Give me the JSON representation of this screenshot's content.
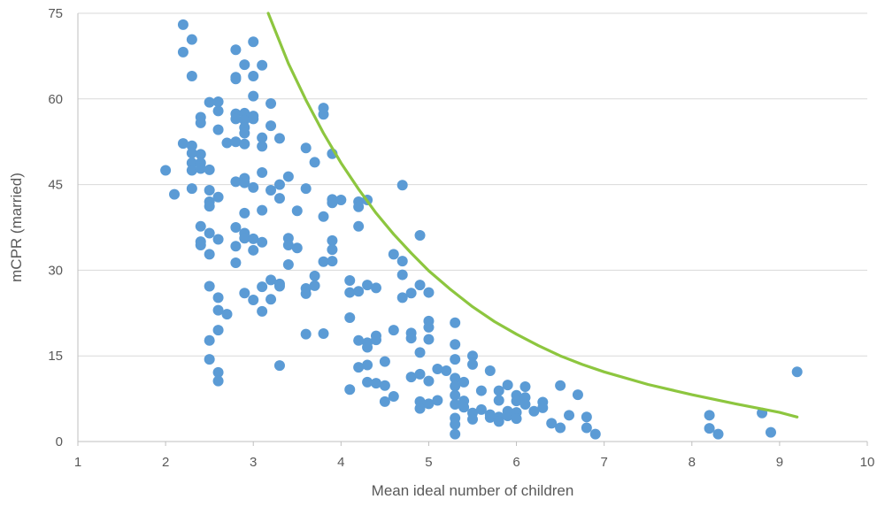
{
  "chart_data": {
    "type": "scatter",
    "title": "",
    "xlabel": "Mean ideal number of children",
    "ylabel": "mCPR (married)",
    "xlim": [
      1,
      10
    ],
    "ylim": [
      0,
      75
    ],
    "x_ticks": [
      "1",
      "2",
      "3",
      "4",
      "5",
      "6",
      "7",
      "8",
      "9",
      "10"
    ],
    "y_ticks": [
      "0",
      "15",
      "30",
      "45",
      "60",
      "75"
    ],
    "grid": "horizontal",
    "legend": "none",
    "colors": {
      "points": "#5B9BD5",
      "trend": "#8DC63F",
      "grid": "#D9D9D9",
      "axis": "#BFBFBF",
      "text": "#595959"
    },
    "trendline": {
      "type": "power",
      "x": [
        3.17,
        3.4,
        3.6,
        3.8,
        4.0,
        4.2,
        4.4,
        4.6,
        4.8,
        5.0,
        5.25,
        5.5,
        5.75,
        6.0,
        6.25,
        6.5,
        6.75,
        7.0,
        7.5,
        8.0,
        8.5,
        9.0,
        9.2
      ],
      "y": [
        75.0,
        66.2,
        59.8,
        54.0,
        48.8,
        44.2,
        40.0,
        36.3,
        33.0,
        29.9,
        26.6,
        23.6,
        21.0,
        18.8,
        16.8,
        15.0,
        13.5,
        12.2,
        10.0,
        8.2,
        6.6,
        5.1,
        4.3
      ]
    },
    "points": [
      [
        2.0,
        47.5
      ],
      [
        2.1,
        43.3
      ],
      [
        2.2,
        73.0
      ],
      [
        2.2,
        68.2
      ],
      [
        2.2,
        52.2
      ],
      [
        2.3,
        70.4
      ],
      [
        2.3,
        64.0
      ],
      [
        2.3,
        51.8
      ],
      [
        2.3,
        50.5
      ],
      [
        2.3,
        48.8
      ],
      [
        2.3,
        47.5
      ],
      [
        2.3,
        44.3
      ],
      [
        2.4,
        56.8
      ],
      [
        2.4,
        55.8
      ],
      [
        2.4,
        50.3
      ],
      [
        2.4,
        48.8
      ],
      [
        2.4,
        47.8
      ],
      [
        2.4,
        37.7
      ],
      [
        2.4,
        35.0
      ],
      [
        2.4,
        34.4
      ],
      [
        2.5,
        59.4
      ],
      [
        2.5,
        47.6
      ],
      [
        2.5,
        44.0
      ],
      [
        2.5,
        42.0
      ],
      [
        2.5,
        41.2
      ],
      [
        2.5,
        36.5
      ],
      [
        2.5,
        32.8
      ],
      [
        2.5,
        27.2
      ],
      [
        2.5,
        17.7
      ],
      [
        2.5,
        14.4
      ],
      [
        2.6,
        59.5
      ],
      [
        2.6,
        57.9
      ],
      [
        2.6,
        54.6
      ],
      [
        2.6,
        42.8
      ],
      [
        2.6,
        35.4
      ],
      [
        2.6,
        25.2
      ],
      [
        2.6,
        23.0
      ],
      [
        2.6,
        19.5
      ],
      [
        2.6,
        12.1
      ],
      [
        2.6,
        10.6
      ],
      [
        2.7,
        52.3
      ],
      [
        2.7,
        22.3
      ],
      [
        2.8,
        68.6
      ],
      [
        2.8,
        63.8
      ],
      [
        2.8,
        63.5
      ],
      [
        2.8,
        57.4
      ],
      [
        2.8,
        56.5
      ],
      [
        2.8,
        52.5
      ],
      [
        2.8,
        45.5
      ],
      [
        2.8,
        37.5
      ],
      [
        2.8,
        34.2
      ],
      [
        2.8,
        31.3
      ],
      [
        2.9,
        66.0
      ],
      [
        2.9,
        57.5
      ],
      [
        2.9,
        56.3
      ],
      [
        2.9,
        55.0
      ],
      [
        2.9,
        54.0
      ],
      [
        2.9,
        52.1
      ],
      [
        2.9,
        46.1
      ],
      [
        2.9,
        45.3
      ],
      [
        2.9,
        40.0
      ],
      [
        2.9,
        36.5
      ],
      [
        2.9,
        35.6
      ],
      [
        2.9,
        26.0
      ],
      [
        3.0,
        70.0
      ],
      [
        3.0,
        64.0
      ],
      [
        3.0,
        60.5
      ],
      [
        3.0,
        57.0
      ],
      [
        3.0,
        56.5
      ],
      [
        3.0,
        44.5
      ],
      [
        3.0,
        35.5
      ],
      [
        3.0,
        33.5
      ],
      [
        3.0,
        24.8
      ],
      [
        3.1,
        65.9
      ],
      [
        3.1,
        53.2
      ],
      [
        3.1,
        51.7
      ],
      [
        3.1,
        47.1
      ],
      [
        3.1,
        40.5
      ],
      [
        3.1,
        34.9
      ],
      [
        3.1,
        27.1
      ],
      [
        3.1,
        22.8
      ],
      [
        3.2,
        59.2
      ],
      [
        3.2,
        55.3
      ],
      [
        3.2,
        44.0
      ],
      [
        3.2,
        28.3
      ],
      [
        3.2,
        24.9
      ],
      [
        3.3,
        53.1
      ],
      [
        3.3,
        45.0
      ],
      [
        3.3,
        42.6
      ],
      [
        3.3,
        27.6
      ],
      [
        3.3,
        27.2
      ],
      [
        3.3,
        13.3
      ],
      [
        3.4,
        46.4
      ],
      [
        3.4,
        35.6
      ],
      [
        3.4,
        34.4
      ],
      [
        3.4,
        31.0
      ],
      [
        3.5,
        40.4
      ],
      [
        3.5,
        33.9
      ],
      [
        3.6,
        51.4
      ],
      [
        3.6,
        44.3
      ],
      [
        3.6,
        26.8
      ],
      [
        3.6,
        25.9
      ],
      [
        3.6,
        18.8
      ],
      [
        3.7,
        48.9
      ],
      [
        3.7,
        29.0
      ],
      [
        3.7,
        27.3
      ],
      [
        3.8,
        58.4
      ],
      [
        3.8,
        57.3
      ],
      [
        3.8,
        39.4
      ],
      [
        3.8,
        31.5
      ],
      [
        3.8,
        18.9
      ],
      [
        3.9,
        50.4
      ],
      [
        3.9,
        42.4
      ],
      [
        3.9,
        41.8
      ],
      [
        3.9,
        35.2
      ],
      [
        3.9,
        33.6
      ],
      [
        3.9,
        31.6
      ],
      [
        4.0,
        42.3
      ],
      [
        4.1,
        28.2
      ],
      [
        4.1,
        26.1
      ],
      [
        4.1,
        21.7
      ],
      [
        4.1,
        9.1
      ],
      [
        4.2,
        42.0
      ],
      [
        4.2,
        41.1
      ],
      [
        4.2,
        37.7
      ],
      [
        4.2,
        26.3
      ],
      [
        4.2,
        17.7
      ],
      [
        4.2,
        13.0
      ],
      [
        4.3,
        42.3
      ],
      [
        4.3,
        27.4
      ],
      [
        4.3,
        17.3
      ],
      [
        4.3,
        16.5
      ],
      [
        4.3,
        13.4
      ],
      [
        4.3,
        10.4
      ],
      [
        4.4,
        26.9
      ],
      [
        4.4,
        18.5
      ],
      [
        4.4,
        17.8
      ],
      [
        4.4,
        10.2
      ],
      [
        4.5,
        14.0
      ],
      [
        4.5,
        9.8
      ],
      [
        4.5,
        7.0
      ],
      [
        4.6,
        32.8
      ],
      [
        4.6,
        19.5
      ],
      [
        4.6,
        7.9
      ],
      [
        4.7,
        44.9
      ],
      [
        4.7,
        31.6
      ],
      [
        4.7,
        29.2
      ],
      [
        4.7,
        25.2
      ],
      [
        4.8,
        26.0
      ],
      [
        4.8,
        19.0
      ],
      [
        4.8,
        18.1
      ],
      [
        4.8,
        11.3
      ],
      [
        4.9,
        36.1
      ],
      [
        4.9,
        27.4
      ],
      [
        4.9,
        15.6
      ],
      [
        4.9,
        11.8
      ],
      [
        4.9,
        7.0
      ],
      [
        4.9,
        5.8
      ],
      [
        5.0,
        26.1
      ],
      [
        5.0,
        21.1
      ],
      [
        5.0,
        20.0
      ],
      [
        5.0,
        17.9
      ],
      [
        5.0,
        10.6
      ],
      [
        5.0,
        6.6
      ],
      [
        5.1,
        12.7
      ],
      [
        5.1,
        7.2
      ],
      [
        5.2,
        12.4
      ],
      [
        5.3,
        20.8
      ],
      [
        5.3,
        17.0
      ],
      [
        5.3,
        14.4
      ],
      [
        5.3,
        11.1
      ],
      [
        5.3,
        9.7
      ],
      [
        5.3,
        8.1
      ],
      [
        5.3,
        6.5
      ],
      [
        5.3,
        4.1
      ],
      [
        5.3,
        3.0
      ],
      [
        5.3,
        1.3
      ],
      [
        5.4,
        10.4
      ],
      [
        5.4,
        7.1
      ],
      [
        5.4,
        6.0
      ],
      [
        5.5,
        15.0
      ],
      [
        5.5,
        13.5
      ],
      [
        5.5,
        5.0
      ],
      [
        5.5,
        3.9
      ],
      [
        5.6,
        8.9
      ],
      [
        5.6,
        5.6
      ],
      [
        5.7,
        12.4
      ],
      [
        5.7,
        4.7
      ],
      [
        5.7,
        4.2
      ],
      [
        5.8,
        8.9
      ],
      [
        5.8,
        7.2
      ],
      [
        5.8,
        4.3
      ],
      [
        5.8,
        3.5
      ],
      [
        5.9,
        9.9
      ],
      [
        5.9,
        5.3
      ],
      [
        5.9,
        4.5
      ],
      [
        6.0,
        8.1
      ],
      [
        6.0,
        7.1
      ],
      [
        6.0,
        5.1
      ],
      [
        6.0,
        4.0
      ],
      [
        6.1,
        9.6
      ],
      [
        6.1,
        7.7
      ],
      [
        6.1,
        6.5
      ],
      [
        6.2,
        5.3
      ],
      [
        6.3,
        6.9
      ],
      [
        6.3,
        5.9
      ],
      [
        6.4,
        3.2
      ],
      [
        6.5,
        9.8
      ],
      [
        6.5,
        2.4
      ],
      [
        6.6,
        4.6
      ],
      [
        6.7,
        8.2
      ],
      [
        6.8,
        4.3
      ],
      [
        6.8,
        2.4
      ],
      [
        6.9,
        1.3
      ],
      [
        8.2,
        4.6
      ],
      [
        8.2,
        2.3
      ],
      [
        8.3,
        1.3
      ],
      [
        8.8,
        5.0
      ],
      [
        8.9,
        1.6
      ],
      [
        9.2,
        12.2
      ]
    ]
  }
}
